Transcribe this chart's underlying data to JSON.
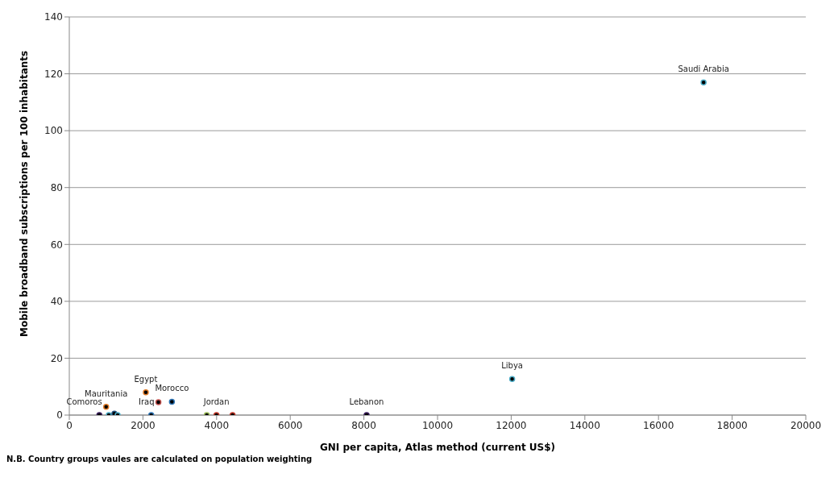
{
  "chart_data": {
    "type": "scatter",
    "xlabel": "GNI per capita, Atlas method  (current US$)",
    "ylabel": "Mobile broadband subscriptions per 100 inhabitants",
    "x": [
      816,
      1000,
      1072,
      1225,
      1313,
      2078,
      2225,
      2420,
      2786,
      3734,
      3996,
      4434,
      8074,
      12026,
      17224
    ],
    "series": [
      {
        "values": [
          0,
          2.9,
          0,
          0.5,
          0,
          8,
          0,
          4.5,
          4.7,
          0,
          0,
          0,
          0,
          12.7,
          117
        ],
        "colors": [
          "#3a1f5c",
          "#e07b28",
          "#4bacc6",
          "#1f4e79",
          "#4bacc6",
          "#e07b28",
          "#2e75b6",
          "#c0504d",
          "#2e75b6",
          "#9bbb59",
          "#c0392b",
          "#c0392b",
          "#3a1f5c",
          "#4bacc6",
          "#4bacc6"
        ]
      }
    ],
    "marker": "circle",
    "xlim": [
      0,
      20000
    ],
    "xticks": [
      0,
      2000,
      4000,
      6000,
      8000,
      10000,
      12000,
      14000,
      16000,
      18000,
      20000
    ],
    "ylim": [
      0,
      140
    ],
    "yticks": [
      0,
      20,
      40,
      60,
      80,
      100,
      120,
      140
    ],
    "grid": "y",
    "legend": false,
    "annotations": [
      {
        "text": "Comoros",
        "x": 816,
        "y": 0
      },
      {
        "text": "Mauritania",
        "x": 1000,
        "y": 2.9
      },
      {
        "text": "Egypt",
        "x": 2078,
        "y": 8
      },
      {
        "text": "Iraq",
        "x": 2225,
        "y": 0
      },
      {
        "text": "Morocco",
        "x": 2786,
        "y": 4.7
      },
      {
        "text": "Jordan",
        "x": 3996,
        "y": 0
      },
      {
        "text": "Lebanon",
        "x": 8074,
        "y": 0
      },
      {
        "text": "Libya",
        "x": 12026,
        "y": 12.7
      },
      {
        "text": "Saudi Arabia",
        "x": 17224,
        "y": 117
      },
      "N.B.  Country groups vaules are calculated on population weighting"
    ]
  }
}
